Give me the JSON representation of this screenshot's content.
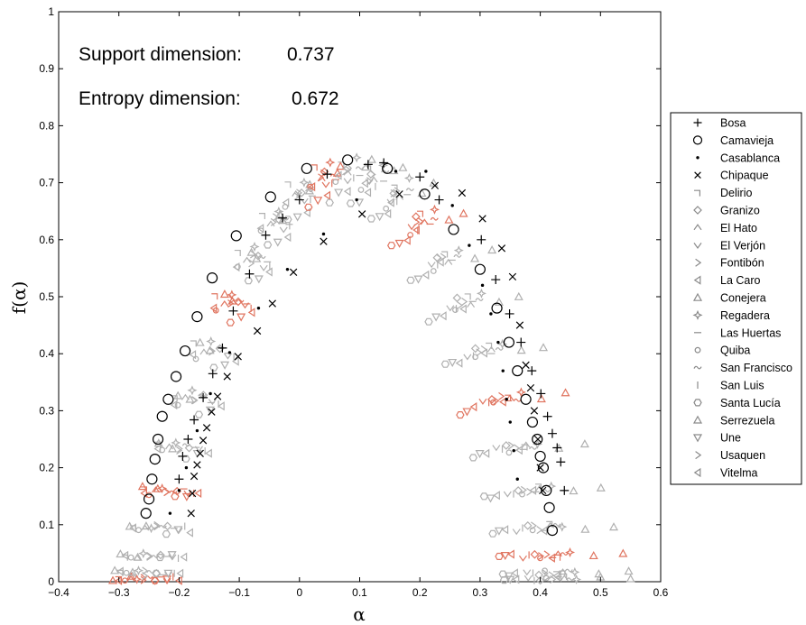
{
  "chart_data": {
    "type": "scatter",
    "title": "",
    "xlabel": "α",
    "ylabel": "f(α)",
    "xlim": [
      -0.4,
      0.6
    ],
    "ylim": [
      0,
      1
    ],
    "grid": false,
    "legend_position": "right",
    "xticks": [
      "−0.4",
      "−0.3",
      "−0.2",
      "−0.1",
      "0",
      "0.1",
      "0.2",
      "0.3",
      "0.4",
      "0.5",
      "0.6"
    ],
    "yticks": [
      "0",
      "0.1",
      "0.2",
      "0.3",
      "0.4",
      "0.5",
      "0.6",
      "0.7",
      "0.8",
      "0.9",
      "1"
    ],
    "annotations": [
      {
        "label": "Support dimension:",
        "value": "0.737"
      },
      {
        "label": "Entropy dimension:",
        "value": "0.672"
      }
    ],
    "highlight_series": [
      {
        "name": "Bosa",
        "marker": "+",
        "x": [
          -0.2,
          -0.194,
          -0.185,
          -0.175,
          -0.16,
          -0.144,
          -0.128,
          -0.11,
          -0.083,
          -0.056,
          -0.028,
          0,
          0.046,
          0.114,
          0.14,
          0.2,
          0.232,
          0.302,
          0.326,
          0.349,
          0.368,
          0.386,
          0.401,
          0.412,
          0.42,
          0.428,
          0.434,
          0.44
        ],
        "y": [
          0.18,
          0.22,
          0.25,
          0.284,
          0.323,
          0.365,
          0.41,
          0.475,
          0.54,
          0.608,
          0.638,
          0.67,
          0.715,
          0.732,
          0.735,
          0.71,
          0.67,
          0.6,
          0.53,
          0.47,
          0.42,
          0.37,
          0.33,
          0.29,
          0.26,
          0.235,
          0.21,
          0.16
        ]
      },
      {
        "name": "Camavieja",
        "marker": "o",
        "x": [
          -0.255,
          -0.25,
          -0.245,
          -0.24,
          -0.235,
          -0.228,
          -0.218,
          -0.205,
          -0.19,
          -0.17,
          -0.145,
          -0.105,
          -0.048,
          0.012,
          0.08,
          0.146,
          0.208,
          0.256,
          0.3,
          0.328,
          0.348,
          0.362,
          0.376,
          0.387,
          0.395,
          0.4,
          0.405,
          0.41,
          0.415,
          0.42
        ],
        "y": [
          0.12,
          0.145,
          0.18,
          0.215,
          0.25,
          0.29,
          0.32,
          0.36,
          0.405,
          0.465,
          0.533,
          0.607,
          0.675,
          0.725,
          0.74,
          0.725,
          0.68,
          0.618,
          0.548,
          0.48,
          0.42,
          0.37,
          0.32,
          0.28,
          0.25,
          0.22,
          0.2,
          0.16,
          0.13,
          0.09
        ]
      },
      {
        "name": "Casablanca",
        "marker": ".",
        "x": [
          -0.215,
          -0.2,
          -0.188,
          -0.17,
          -0.148,
          -0.116,
          -0.068,
          -0.02,
          0.04,
          0.095,
          0.16,
          0.21,
          0.254,
          0.282,
          0.304,
          0.318,
          0.33,
          0.338,
          0.344,
          0.35,
          0.356,
          0.362
        ],
        "y": [
          0.12,
          0.16,
          0.2,
          0.265,
          0.33,
          0.402,
          0.48,
          0.548,
          0.61,
          0.67,
          0.72,
          0.72,
          0.66,
          0.59,
          0.52,
          0.47,
          0.42,
          0.37,
          0.32,
          0.28,
          0.23,
          0.18
        ]
      },
      {
        "name": "Chipaque",
        "marker": "x",
        "x": [
          -0.18,
          -0.178,
          -0.175,
          -0.17,
          -0.165,
          -0.16,
          -0.154,
          -0.146,
          -0.136,
          -0.12,
          -0.102,
          -0.07,
          -0.045,
          -0.01,
          0.04,
          0.104,
          0.166,
          0.225,
          0.27,
          0.304,
          0.336,
          0.354,
          0.366,
          0.376,
          0.384,
          0.39,
          0.396,
          0.4,
          0.404
        ],
        "y": [
          0.12,
          0.155,
          0.185,
          0.205,
          0.225,
          0.248,
          0.27,
          0.298,
          0.325,
          0.36,
          0.395,
          0.44,
          0.488,
          0.543,
          0.597,
          0.645,
          0.68,
          0.695,
          0.682,
          0.637,
          0.585,
          0.535,
          0.45,
          0.38,
          0.34,
          0.3,
          0.25,
          0.2,
          0.16
        ]
      }
    ],
    "legend": [
      "Bosa",
      "Camavieja",
      "Casablanca",
      "Chipaque",
      "Delirio",
      "Granizo",
      "El Hato",
      "El Verjón",
      "Fontibón",
      "La Caro",
      "Conejera",
      "Regadera",
      "Las Huertas",
      "Quiba",
      "San Francisco",
      "San Luis",
      "Santa Lucía",
      "Serrezuela",
      "Une",
      "Usaquen",
      "Vitelma"
    ],
    "legend_markers": [
      "+",
      "o",
      ".",
      "x",
      "⌐",
      "◇",
      "∧",
      "∨",
      ">",
      "◁",
      "△",
      "✧",
      "-",
      "○",
      "~",
      "|",
      "⬡",
      "△",
      "▽",
      ">",
      "◁"
    ],
    "light_series_alpha_range": {
      "Delirio": [
        -0.3,
        0.44
      ],
      "Granizo": [
        -0.24,
        0.4
      ],
      "El Hato": [
        -0.28,
        0.44
      ],
      "El Verjón": [
        -0.22,
        0.38
      ],
      "Fontibón": [
        -0.26,
        0.42
      ],
      "La Caro": [
        -0.2,
        0.36
      ],
      "Conejera": [
        -0.31,
        0.55
      ],
      "Regadera": [
        -0.27,
        0.46
      ],
      "Las Huertas": [
        -0.23,
        0.43
      ],
      "Quiba": [
        -0.29,
        0.41
      ],
      "San Francisco": [
        -0.25,
        0.45
      ],
      "San Luis": [
        -0.21,
        0.39
      ],
      "Santa Lucía": [
        -0.24,
        0.34
      ],
      "Serrezuela": [
        -0.28,
        0.5
      ],
      "Une": [
        -0.22,
        0.35
      ],
      "Usaquen": [
        -0.26,
        0.41
      ],
      "Vitelma": [
        -0.3,
        0.43
      ]
    },
    "light_series_peak": {
      "Delirio": 0.77,
      "Granizo": 0.76,
      "El Hato": 0.75,
      "El Verjón": 0.74,
      "Fontibón": 0.76,
      "La Caro": 0.72,
      "Conejera": 0.77,
      "Regadera": 0.78,
      "Las Huertas": 0.75,
      "Quiba": 0.73,
      "San Francisco": 0.76,
      "San Luis": 0.74,
      "Santa Lucía": 0.7,
      "Serrezuela": 0.76,
      "Une": 0.71,
      "Usaquen": 0.75,
      "Vitelma": 0.74
    }
  }
}
